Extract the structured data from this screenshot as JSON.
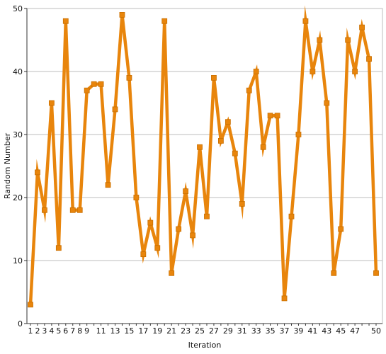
{
  "chart_data": {
    "type": "line",
    "title": "",
    "xlabel": "Iteration",
    "ylabel": "Random Number",
    "x": [
      1,
      2,
      3,
      4,
      5,
      6,
      7,
      8,
      9,
      10,
      11,
      12,
      13,
      14,
      15,
      16,
      17,
      18,
      19,
      20,
      21,
      22,
      23,
      24,
      25,
      26,
      27,
      28,
      29,
      30,
      31,
      32,
      33,
      34,
      35,
      36,
      37,
      38,
      39,
      40,
      41,
      42,
      43,
      44,
      45,
      46,
      47,
      48,
      49,
      50
    ],
    "x_tick_labels": [
      "1",
      "2",
      "3",
      "4",
      "5",
      "6",
      "7",
      "8",
      "9",
      "11",
      "13",
      "15",
      "17",
      "19",
      "21",
      "23",
      "25",
      "27",
      "29",
      "31",
      "33",
      "35",
      "37",
      "39",
      "41",
      "43",
      "45",
      "47",
      "50"
    ],
    "series": [
      {
        "values": [
          3,
          24,
          18,
          35,
          12,
          48,
          18,
          18,
          37,
          38,
          38,
          22,
          34,
          49,
          39,
          20,
          11,
          16,
          12,
          48,
          8,
          15,
          21,
          14,
          28,
          17,
          39,
          29,
          32,
          27,
          19,
          37,
          40,
          28,
          33,
          33,
          4,
          17,
          30,
          48,
          40,
          45,
          35,
          8,
          15,
          45,
          40,
          47,
          42,
          8
        ]
      }
    ],
    "ylim": [
      0,
      50
    ],
    "y_ticks": [
      0,
      10,
      20,
      30,
      40,
      50
    ],
    "xlim": [
      1,
      50
    ],
    "grid": "horizontal",
    "legend": "none",
    "colors": {
      "line": "#e8850c",
      "marker": "#e8850c",
      "grid": "#bdbdbd",
      "axis": "#333333"
    }
  }
}
